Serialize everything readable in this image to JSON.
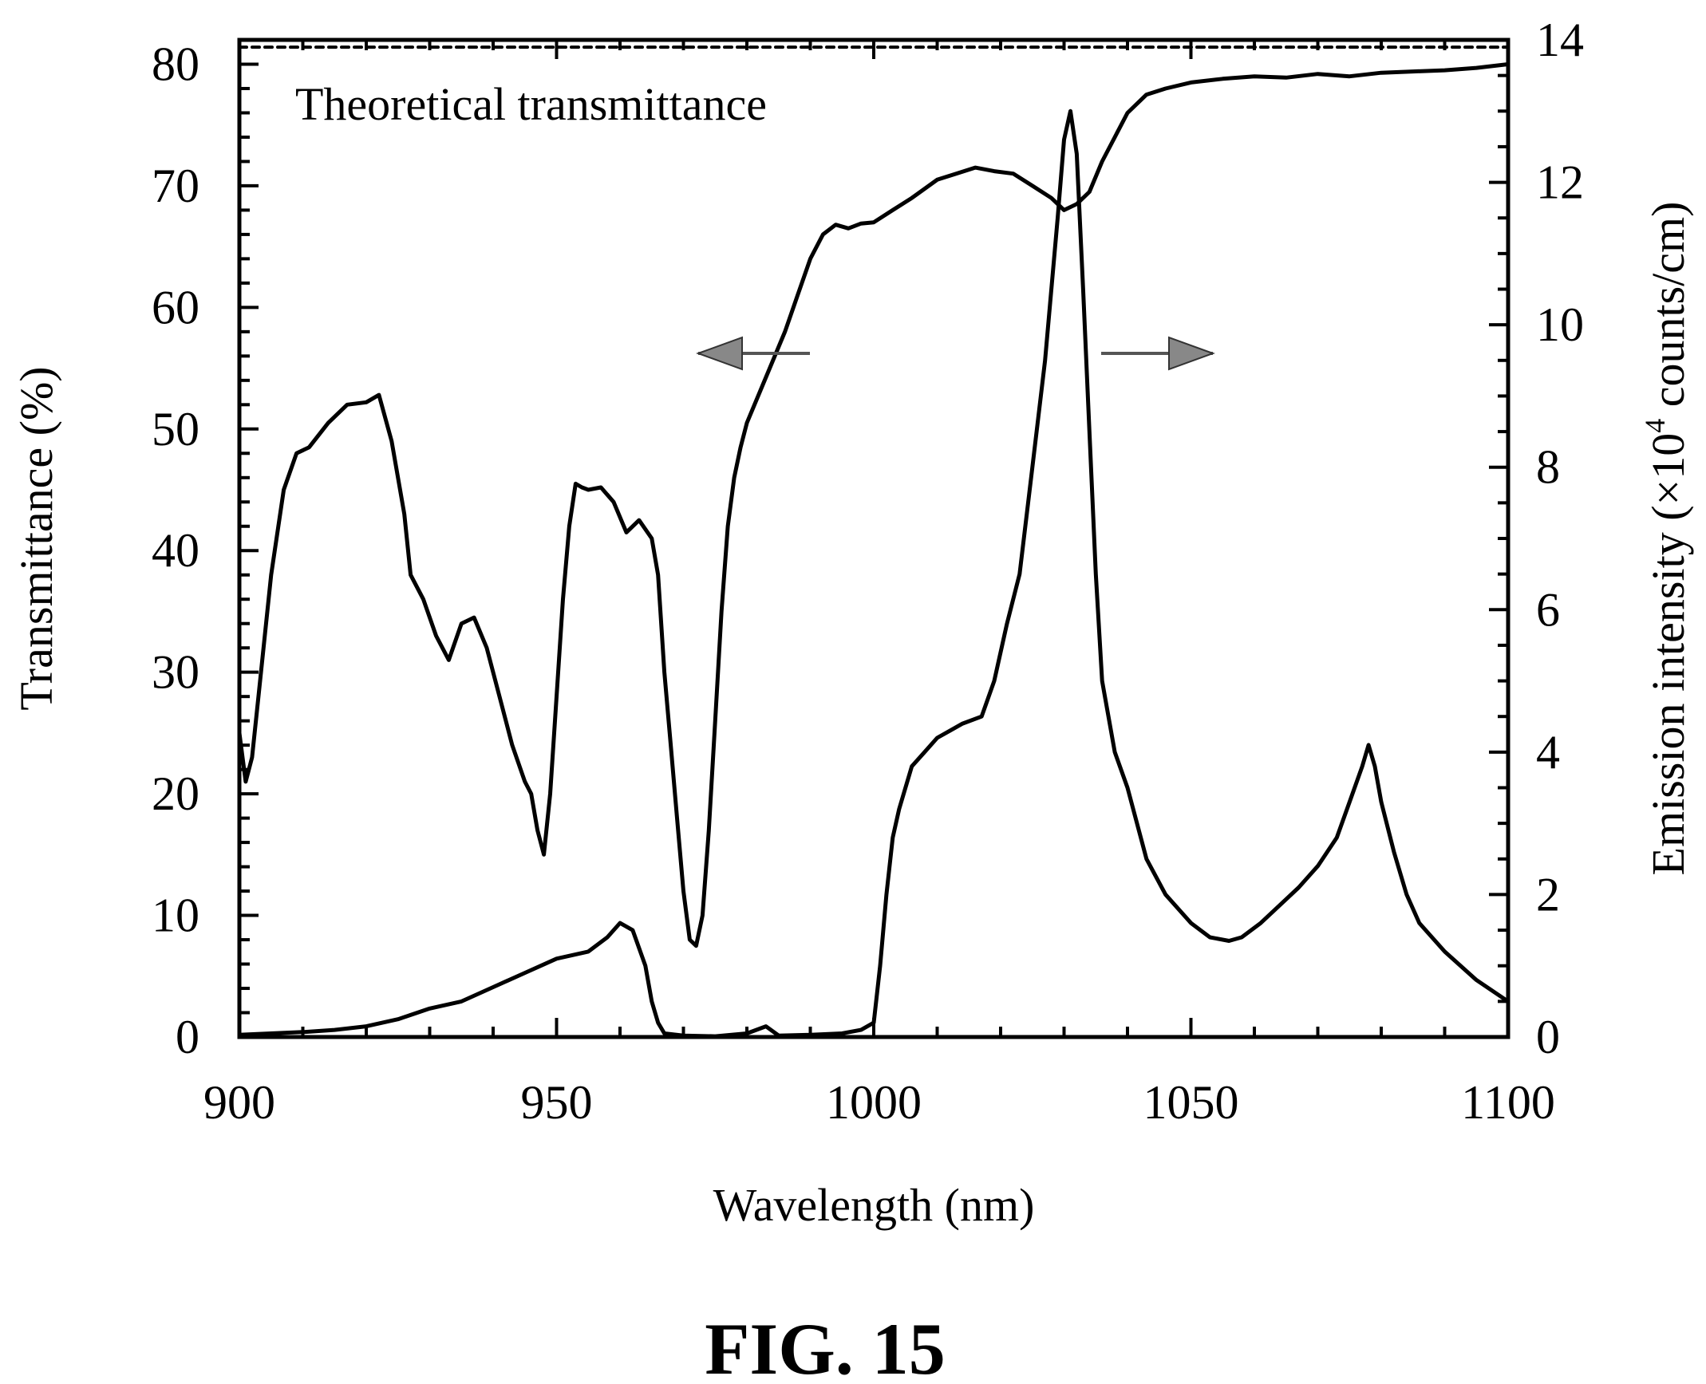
{
  "chart_data": {
    "type": "line",
    "xlabel": "Wavelength (nm)",
    "ylabel_left": "Transmittance (%)",
    "ylabel_right": "Emission intensity (×10⁴ counts/cm)",
    "ylabel_right_parts": {
      "before": "Emission intensity (×10",
      "sup": "4",
      "after": " counts/cm)"
    },
    "annotation": "Theoretical transmittance",
    "caption": "FIG. 15",
    "xlim": [
      900,
      1100
    ],
    "ylim_left": [
      0,
      82
    ],
    "ylim_right": [
      0,
      14
    ],
    "x_ticks": [
      "900",
      "950",
      "1000",
      "1050",
      "1100"
    ],
    "y_left_ticks": [
      "0",
      "10",
      "20",
      "30",
      "40",
      "50",
      "60",
      "70",
      "80"
    ],
    "y_right_ticks": [
      "0",
      "2",
      "4",
      "6",
      "8",
      "10",
      "12",
      "14"
    ],
    "grid": false,
    "arrows": [
      {
        "direction": "left",
        "axis": "left"
      },
      {
        "direction": "right",
        "axis": "right"
      }
    ],
    "series": [
      {
        "axis": "left",
        "style": "dashed",
        "x": [
          900,
          1100
        ],
        "y": [
          81.4,
          81.4
        ]
      },
      {
        "axis": "left",
        "style": "solid",
        "x": [
          900,
          901,
          902,
          903,
          905,
          907,
          909,
          911,
          914,
          917,
          920,
          922,
          924,
          926,
          927,
          929,
          931,
          933,
          935,
          937,
          939,
          941,
          943,
          945,
          946,
          947,
          948,
          949,
          950,
          951,
          952,
          953,
          954,
          955,
          957,
          959,
          961,
          963,
          965,
          966,
          967,
          968,
          969,
          970,
          971,
          972,
          973,
          974,
          975,
          976,
          977,
          978,
          979,
          980,
          982,
          984,
          986,
          988,
          990,
          992,
          994,
          996,
          998,
          1000,
          1003,
          1006,
          1010,
          1013,
          1016,
          1019,
          1022,
          1025,
          1028,
          1030,
          1032,
          1034,
          1036,
          1038,
          1040,
          1043,
          1046,
          1050,
          1055,
          1060,
          1065,
          1070,
          1075,
          1080,
          1085,
          1090,
          1095,
          1100
        ],
        "y": [
          25,
          21,
          23,
          28,
          38,
          45,
          48,
          48.5,
          50.5,
          52,
          52.2,
          52.8,
          49,
          43,
          38,
          36,
          33,
          31,
          34,
          34.5,
          32,
          28,
          24,
          21,
          20,
          17,
          15,
          20,
          28,
          36,
          42,
          45.5,
          45.2,
          45,
          45.2,
          44,
          41.5,
          42.5,
          41,
          38,
          30,
          24,
          18,
          12,
          8,
          7.5,
          10,
          17,
          26,
          35,
          42,
          46,
          48.5,
          50.5,
          53,
          55.5,
          58,
          61,
          64,
          66,
          66.8,
          66.5,
          66.9,
          67,
          68,
          69,
          70.5,
          71,
          71.5,
          71.2,
          71,
          70,
          69,
          68,
          68.5,
          69.5,
          72,
          74,
          76,
          77.5,
          78,
          78.5,
          78.8,
          79,
          78.9,
          79.2,
          79,
          79.3,
          79.4,
          79.5,
          79.7,
          80
        ]
      },
      {
        "axis": "right",
        "style": "solid",
        "x": [
          900,
          905,
          910,
          915,
          920,
          925,
          930,
          935,
          940,
          945,
          950,
          955,
          958,
          960,
          962,
          964,
          965,
          966,
          967,
          970,
          975,
          980,
          983,
          985,
          990,
          995,
          998,
          1000,
          1001,
          1002,
          1003,
          1004,
          1006,
          1008,
          1010,
          1012,
          1014,
          1017,
          1019,
          1021,
          1023,
          1025,
          1027,
          1029,
          1030,
          1031,
          1032,
          1033,
          1034,
          1035,
          1036,
          1038,
          1040,
          1043,
          1046,
          1050,
          1053,
          1056,
          1058,
          1061,
          1064,
          1067,
          1070,
          1073,
          1075,
          1077,
          1078,
          1079,
          1080,
          1082,
          1084,
          1086,
          1090,
          1095,
          1100
        ],
        "y": [
          0.03,
          0.05,
          0.07,
          0.1,
          0.15,
          0.25,
          0.4,
          0.5,
          0.7,
          0.9,
          1.1,
          1.2,
          1.4,
          1.6,
          1.5,
          1.0,
          0.5,
          0.2,
          0.05,
          0.02,
          0.01,
          0.05,
          0.15,
          0.02,
          0.03,
          0.05,
          0.1,
          0.2,
          1.0,
          2.0,
          2.8,
          3.2,
          3.8,
          4.0,
          4.2,
          4.3,
          4.4,
          4.5,
          5.0,
          5.8,
          6.5,
          8.0,
          9.5,
          11.5,
          12.6,
          13.0,
          12.4,
          10.5,
          8.5,
          6.5,
          5.0,
          4.0,
          3.5,
          2.5,
          2.0,
          1.6,
          1.4,
          1.35,
          1.4,
          1.6,
          1.85,
          2.1,
          2.4,
          2.8,
          3.3,
          3.8,
          4.1,
          3.8,
          3.3,
          2.6,
          2.0,
          1.6,
          1.2,
          0.8,
          0.5
        ]
      }
    ]
  }
}
